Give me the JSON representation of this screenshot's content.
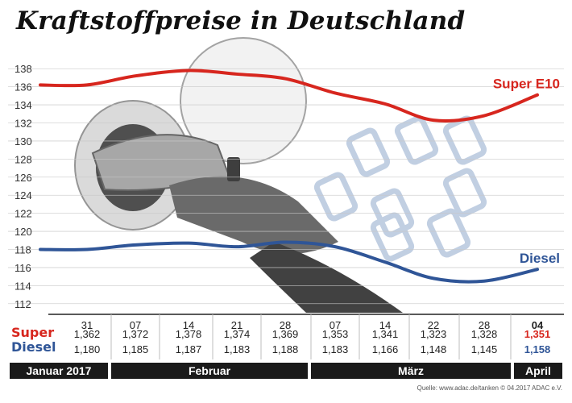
{
  "title": "Kraftstoffpreise in Deutschland",
  "source": "Quelle: www.adac.de/tanken  © 04.2017  ADAC e.V.",
  "chart_data": {
    "type": "line",
    "title": "Kraftstoffpreise in Deutschland",
    "categories": [
      "31",
      "07",
      "14",
      "21",
      "28",
      "07",
      "14",
      "22",
      "28",
      "04"
    ],
    "y_ticks": [
      112,
      114,
      116,
      118,
      120,
      122,
      124,
      126,
      128,
      130,
      132,
      134,
      136,
      138
    ],
    "ylim": [
      111,
      139
    ],
    "series": [
      {
        "name": "Super E10",
        "table_label": "Super",
        "color": "#d7261e",
        "values": [
          136.2,
          137.2,
          137.8,
          137.4,
          136.9,
          135.3,
          134.1,
          132.3,
          132.8,
          135.1
        ],
        "labels": [
          "1,362",
          "1,372",
          "1,378",
          "1,374",
          "1,369",
          "1,353",
          "1,341",
          "1,323",
          "1,328",
          "1,351"
        ]
      },
      {
        "name": "Diesel",
        "table_label": "Diesel",
        "color": "#2f5597",
        "values": [
          118.0,
          118.5,
          118.7,
          118.3,
          118.8,
          118.3,
          116.6,
          114.8,
          114.5,
          115.8
        ],
        "labels": [
          "1,180",
          "1,185",
          "1,187",
          "1,183",
          "1,188",
          "1,183",
          "1,166",
          "1,148",
          "1,145",
          "1,158"
        ]
      }
    ],
    "months": [
      "Januar 2017",
      "Februar",
      "März",
      "April"
    ],
    "grid": true
  }
}
